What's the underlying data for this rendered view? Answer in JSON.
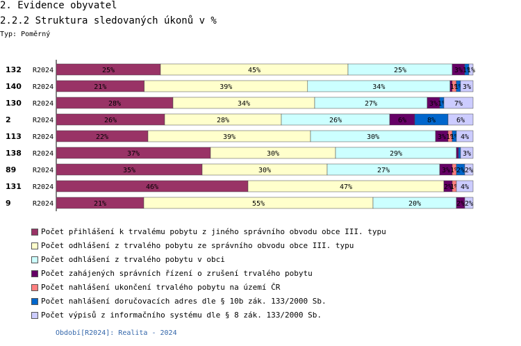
{
  "header": {
    "title": "2. Evidence obyvatel",
    "subtitle": "2.2.2 Struktura sledovaných úkonů v %",
    "type_label": "Typ: Poměrný"
  },
  "footer": {
    "period": "Období[R2024]: Realita - 2024"
  },
  "chart_data": {
    "type": "bar",
    "stacked": true,
    "orientation": "horizontal",
    "normalized_percent": true,
    "categories": [
      {
        "id": "132",
        "period": "R2024"
      },
      {
        "id": "140",
        "period": "R2024"
      },
      {
        "id": "130",
        "period": "R2024"
      },
      {
        "id": "2",
        "period": "R2024"
      },
      {
        "id": "113",
        "period": "R2024"
      },
      {
        "id": "138",
        "period": "R2024"
      },
      {
        "id": "89",
        "period": "R2024"
      },
      {
        "id": "131",
        "period": "R2024"
      },
      {
        "id": "9",
        "period": "R2024"
      }
    ],
    "series": [
      {
        "name": "Počet přihlášení k trvalému pobytu z jiného správního obvodu obce III. typu",
        "color": "#993366",
        "values": [
          25,
          21,
          28,
          26,
          22,
          37,
          35,
          46,
          21
        ]
      },
      {
        "name": "Počet odhlášení z trvalého pobytu ze správního obvodu obce III. typu",
        "color": "#ffffcc",
        "values": [
          45,
          39,
          34,
          28,
          39,
          30,
          30,
          47,
          55
        ]
      },
      {
        "name": "Počet odhlášení z trvalého pobytu v obci",
        "color": "#ccffff",
        "values": [
          25,
          34,
          27,
          26,
          30,
          29,
          27,
          0,
          20
        ]
      },
      {
        "name": "Počet zahájených správních řízení o zrušení trvalého pobytu",
        "color": "#660066",
        "values": [
          3,
          0.5,
          3,
          6,
          3,
          0.5,
          3,
          2,
          2
        ]
      },
      {
        "name": "Počet nahlášení ukončení trvalého pobytu na území ČR",
        "color": "#ff8080",
        "values": [
          0,
          1,
          0,
          0,
          1,
          0,
          1,
          1,
          0
        ]
      },
      {
        "name": "Počet nahlášení doručovacích adres dle § 10b zák. 133/2000 Sb.",
        "color": "#0066cc",
        "values": [
          1,
          1,
          1,
          8,
          1,
          0.5,
          2,
          0,
          0
        ]
      },
      {
        "name": "Počet výpisů z informačního systému dle § 8 zák. 133/2000 Sb.",
        "color": "#ccccff",
        "values": [
          1,
          3,
          7,
          6,
          4,
          3,
          2,
          4,
          2
        ]
      }
    ],
    "segment_labels": [
      [
        "25%",
        "45%",
        "25%",
        "3%",
        "",
        "1%",
        "1%"
      ],
      [
        "21%",
        "39%",
        "34%",
        "",
        "1%",
        "1%",
        "3%"
      ],
      [
        "28%",
        "34%",
        "27%",
        "3%",
        "",
        "1%",
        "7%"
      ],
      [
        "26%",
        "28%",
        "26%",
        "6%",
        "",
        "8%",
        "6%"
      ],
      [
        "22%",
        "39%",
        "30%",
        "3%",
        "1%",
        "1%",
        "4%"
      ],
      [
        "37%",
        "30%",
        "29%",
        "",
        "",
        "",
        "3%"
      ],
      [
        "35%",
        "30%",
        "27%",
        "3%",
        "1%",
        "2%",
        "2%"
      ],
      [
        "46%",
        "47%",
        "",
        "2%",
        "1%",
        "",
        "4%"
      ],
      [
        "21%",
        "55%",
        "20%",
        "2%",
        "",
        "",
        "2%"
      ]
    ],
    "xlim": [
      0,
      100
    ],
    "legend_position": "bottom"
  }
}
